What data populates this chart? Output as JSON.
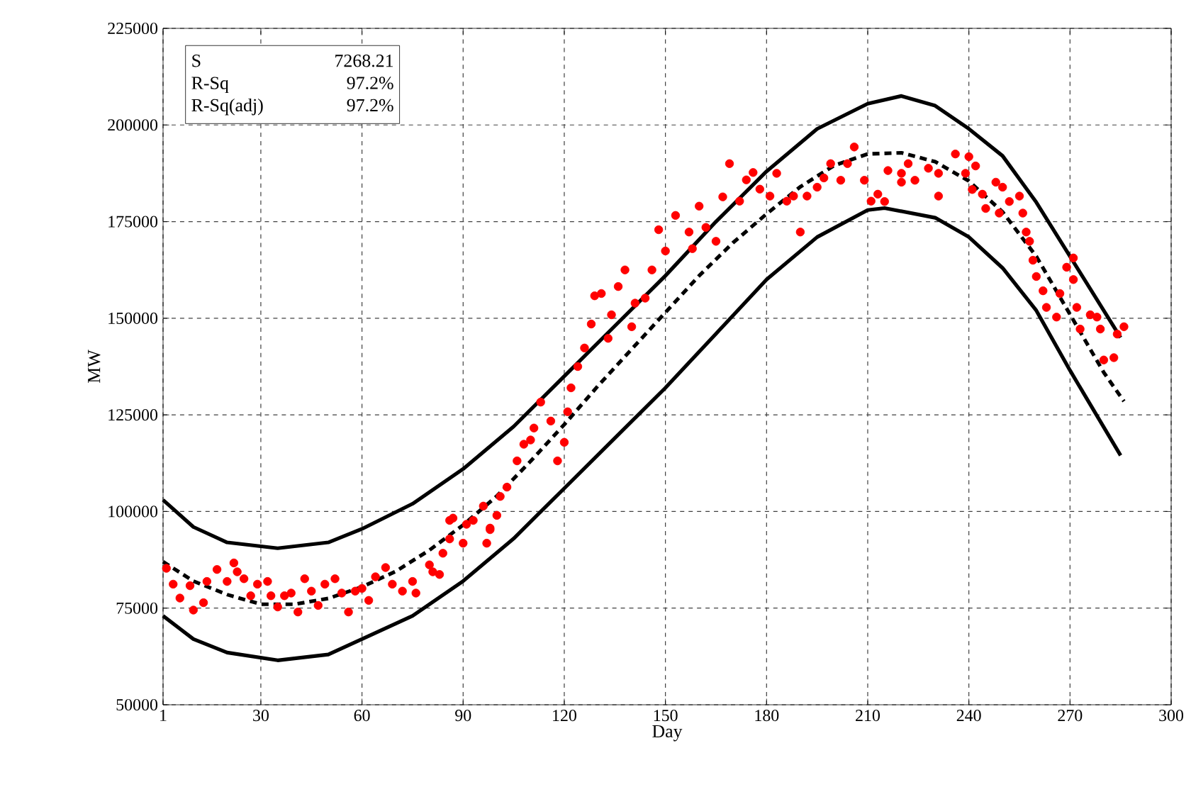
{
  "chart_data": {
    "type": "scatter",
    "xlabel": "Day",
    "ylabel": "MW",
    "xlim": [
      1,
      300
    ],
    "xticks": [
      1,
      30,
      60,
      90,
      120,
      150,
      180,
      210,
      240,
      270,
      300
    ],
    "ylim": [
      50000,
      225000
    ],
    "yticks": [
      50000,
      75000,
      100000,
      125000,
      150000,
      175000,
      200000,
      225000
    ],
    "grid": true,
    "annotations": [
      "S",
      "7268.21",
      "R-Sq",
      "97.2%",
      "R-Sq(adj)",
      "97.2%"
    ],
    "series": [
      {
        "type": "scatter",
        "color": "#ff0000",
        "marker": "circle",
        "x": [
          2,
          4,
          6,
          9,
          10,
          13,
          14,
          17,
          20,
          22,
          23,
          25,
          27,
          29,
          32,
          33,
          35,
          37,
          39,
          41,
          43,
          45,
          47,
          49,
          52,
          54,
          56,
          58,
          60,
          62,
          64,
          67,
          69,
          72,
          75,
          76,
          80,
          83,
          84,
          86,
          87,
          90,
          91,
          96,
          97,
          98,
          100,
          103,
          81,
          86,
          93,
          98,
          101,
          106,
          108,
          110,
          111,
          113,
          116,
          118,
          120,
          121,
          122,
          124,
          126,
          128,
          129,
          131,
          133,
          134,
          136,
          138,
          140,
          141,
          144,
          146,
          148,
          150,
          153,
          157,
          158,
          160,
          162,
          165,
          167,
          169,
          172,
          174,
          176,
          178,
          181,
          183,
          186,
          188,
          190,
          192,
          195,
          197,
          199,
          202,
          204,
          206,
          209,
          211,
          213,
          216,
          220,
          222,
          215,
          220,
          224,
          228,
          231,
          231,
          236,
          240,
          239,
          242,
          241,
          244,
          245,
          248,
          250,
          249,
          252,
          255,
          256,
          257,
          258,
          259,
          260,
          262,
          263,
          266,
          267,
          269,
          271,
          271,
          272,
          273,
          276,
          278,
          279,
          280,
          283,
          284,
          286
        ],
        "values": [
          85300,
          81200,
          77600,
          80800,
          74500,
          76400,
          81900,
          85000,
          81900,
          86700,
          84400,
          82600,
          78200,
          81200,
          81900,
          78200,
          75300,
          78200,
          78900,
          74000,
          82600,
          79400,
          75700,
          81200,
          82600,
          78900,
          74000,
          79400,
          80100,
          77000,
          83100,
          85500,
          81200,
          79400,
          81900,
          78900,
          86200,
          83700,
          89200,
          92900,
          98300,
          91800,
          96700,
          101400,
          91800,
          95700,
          99000,
          106300,
          84400,
          97700,
          97700,
          95300,
          103900,
          113100,
          117400,
          118500,
          121600,
          128300,
          123400,
          113100,
          117900,
          125800,
          132000,
          137500,
          142300,
          148500,
          155800,
          156400,
          144800,
          150900,
          158200,
          162500,
          147800,
          153900,
          155200,
          162500,
          172900,
          167400,
          176600,
          172300,
          168000,
          179000,
          173500,
          169900,
          181400,
          190000,
          180300,
          185800,
          187700,
          183400,
          181600,
          187500,
          180300,
          181600,
          172300,
          181600,
          183900,
          186300,
          190000,
          185700,
          190000,
          194300,
          185700,
          180300,
          182100,
          188200,
          185200,
          190000,
          180200,
          187500,
          185700,
          188800,
          187500,
          181600,
          192500,
          191800,
          187500,
          189400,
          183300,
          182100,
          178400,
          185200,
          183900,
          177200,
          180200,
          181600,
          177200,
          172300,
          169900,
          165000,
          160800,
          157100,
          152800,
          150300,
          156400,
          163200,
          165600,
          160000,
          152800,
          147200,
          150900,
          150300,
          147200,
          139200,
          139800,
          145900,
          147800
        ]
      },
      {
        "type": "line",
        "color": "#000000",
        "line_style": "dashed",
        "x": [
          1,
          10,
          20,
          30,
          40,
          50,
          60,
          70,
          80,
          90,
          100,
          110,
          120,
          130,
          140,
          150,
          160,
          170,
          180,
          190,
          200,
          210,
          220,
          230,
          240,
          250,
          260,
          270,
          280,
          286
        ],
        "values": [
          87000,
          82000,
          78500,
          76000,
          76000,
          77500,
          80500,
          84500,
          90000,
          96500,
          104000,
          113000,
          122500,
          132500,
          142000,
          151500,
          161000,
          169500,
          177000,
          184000,
          189500,
          192500,
          192800,
          190500,
          185500,
          177500,
          166000,
          151000,
          136000,
          128500
        ]
      },
      {
        "type": "line",
        "color": "#000000",
        "line_style": "solid",
        "x": [
          1,
          10,
          20,
          35,
          50,
          60,
          75,
          90,
          105,
          120,
          135,
          150,
          165,
          180,
          195,
          210,
          220,
          230,
          240,
          250,
          260,
          270,
          285
        ],
        "values": [
          103000,
          96000,
          92000,
          90500,
          92000,
          95500,
          102000,
          111000,
          122000,
          135000,
          148000,
          161000,
          175000,
          188000,
          199000,
          205500,
          207500,
          205000,
          199000,
          192000,
          180000,
          166000,
          145000
        ]
      },
      {
        "type": "line",
        "color": "#000000",
        "line_style": "solid",
        "x": [
          1,
          10,
          20,
          35,
          50,
          60,
          75,
          90,
          105,
          120,
          135,
          150,
          165,
          180,
          195,
          210,
          215,
          230,
          240,
          250,
          260,
          270,
          285
        ],
        "values": [
          73000,
          67000,
          63500,
          61500,
          63000,
          67000,
          73000,
          82000,
          93000,
          106000,
          119000,
          132000,
          146000,
          160000,
          171000,
          178000,
          178500,
          176000,
          171000,
          163000,
          152000,
          136500,
          114500
        ]
      }
    ]
  }
}
